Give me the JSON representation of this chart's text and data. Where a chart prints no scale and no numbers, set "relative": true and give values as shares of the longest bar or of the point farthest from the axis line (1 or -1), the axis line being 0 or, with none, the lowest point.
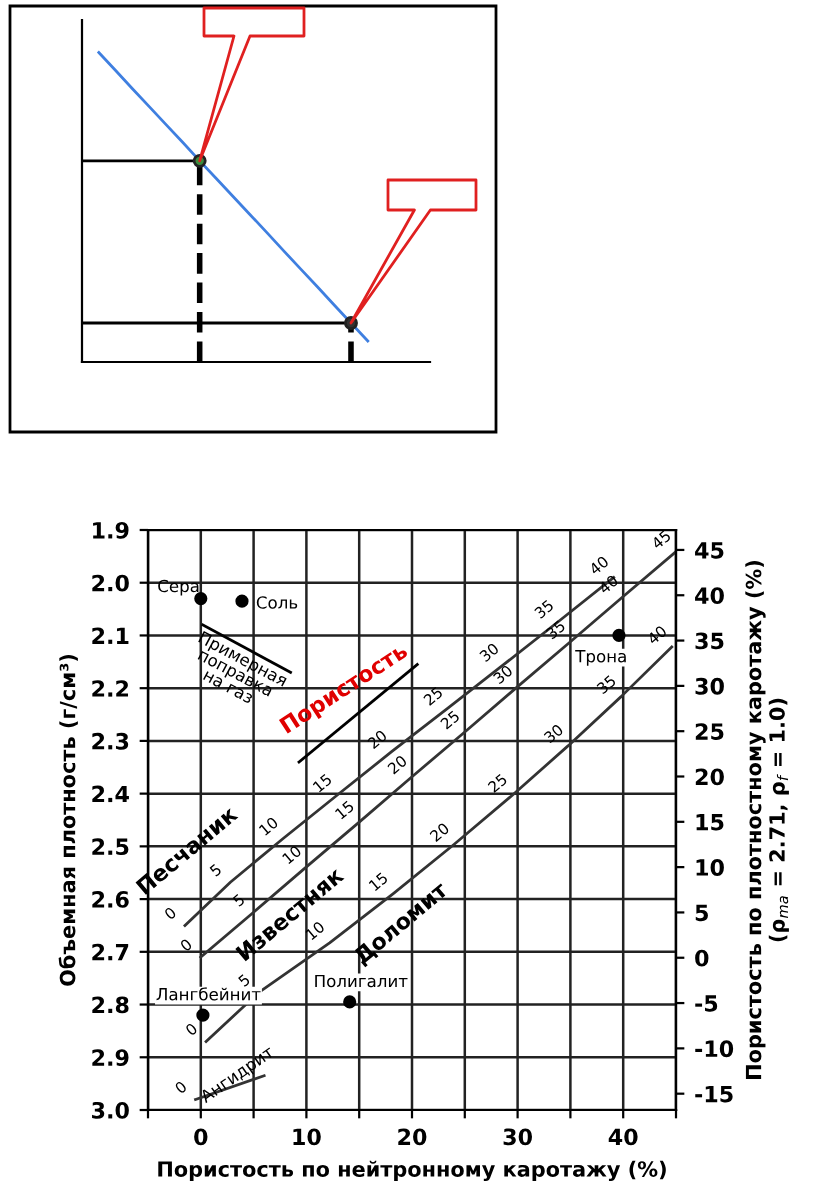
{
  "chart_data": [
    {
      "type": "line",
      "relative": true,
      "categories": [
        null,
        null,
        null,
        null,
        null,
        null,
        null,
        null,
        null,
        null,
        null,
        null,
        null,
        null,
        null,
        null,
        null,
        null
      ],
      "series": [
        {
          "color": "#3f7fe0",
          "values": [
            null,
            1.0,
            0.942,
            0.883,
            0.825,
            0.767,
            0.709,
            0.65,
            0.592,
            0.534,
            0.476,
            0.418,
            0.359,
            0.301,
            0.243,
            0.184,
            0.126,
            0.068
          ]
        },
        {
          "color": "#000000",
          "values": [
            0.65,
            0.65,
            0.65,
            0.65,
            0.65,
            0.65,
            0.65,
            0.65,
            null,
            null,
            null,
            null,
            null,
            null,
            null,
            null,
            null,
            null
          ]
        },
        {
          "color": "#000000",
          "values": [
            0.126,
            0.126,
            0.126,
            0.126,
            0.126,
            0.126,
            0.126,
            0.126,
            0.126,
            0.126,
            0.126,
            0.126,
            0.126,
            0.126,
            0.126,
            0.126,
            0.126,
            null
          ]
        }
      ]
    },
    {
      "type": "line",
      "grid": true,
      "xlabel": "Пористость по нейтронному каротажу (%)",
      "ylabel": "Объемная плотность (г/см³)",
      "y2label": "Пористость по плотностному каротажу (%)\n(ρ$_{ma}$ = 2.71, ρ$_{f}$ = 1.0)",
      "xlim": [
        -5,
        45
      ],
      "xticks": [
        {
          "value": -5,
          "label": null
        },
        0,
        {
          "value": 5,
          "label": null
        },
        10,
        {
          "value": 15,
          "label": null
        },
        20,
        {
          "value": 25,
          "label": null
        },
        30,
        {
          "value": 35,
          "label": null
        },
        40,
        {
          "value": 45,
          "label": null
        }
      ],
      "ylim": [
        3.0,
        1.9
      ],
      "yticks": [
        1.9,
        {
          "value": 2.0,
          "label": "2.0"
        },
        2.1,
        2.2,
        2.3,
        2.4,
        2.5,
        2.6,
        2.7,
        2.8,
        2.9,
        {
          "value": 3.0,
          "label": "3.0"
        }
      ],
      "y2lim": [
        -16.8,
        47.2
      ],
      "y2ticks": [
        -15,
        -10,
        -5,
        0,
        5,
        10,
        15,
        20,
        25,
        30,
        35,
        40,
        45
      ],
      "series": [
        {
          "color": "#333333",
          "x": [
            -1.5,
            2.8,
            7.8,
            12.9,
            18.1,
            23.4,
            28.7,
            33.9,
            39.1
          ],
          "values": [
            2.65,
            2.568,
            2.485,
            2.403,
            2.32,
            2.238,
            2.155,
            2.073,
            1.99
          ]
        },
        {
          "color": "#333333",
          "x": [
            0,
            5,
            10,
            15,
            20,
            25,
            30,
            35,
            40,
            45
          ],
          "values": [
            2.71,
            2.625,
            2.539,
            2.454,
            2.368,
            2.283,
            2.197,
            2.112,
            2.026,
            1.941
          ]
        },
        {
          "color": "#333333",
          "x": [
            0.5,
            5.5,
            12.2,
            18.2,
            24,
            29.5,
            34.8,
            39.8,
            44.6
          ],
          "values": [
            2.87,
            2.777,
            2.683,
            2.59,
            2.496,
            2.403,
            2.309,
            2.216,
            2.122
          ]
        },
        {
          "color": "#333333",
          "x": [
            -0.5,
            6
          ],
          "values": [
            2.98,
            2.935
          ]
        },
        {
          "color": "#000000",
          "x": [
            0.2,
            8.5
          ],
          "values": [
            2.08,
            2.17
          ]
        },
        {
          "color": "#000000",
          "x": [
            9.3,
            20.5
          ],
          "values": [
            2.34,
            2.155
          ]
        },
        {
          "type": "scatter",
          "marker": "circle",
          "color": "#000000",
          "x": [
            0,
            3.9,
            39.6,
            0.2,
            14.1
          ],
          "values": [
            2.03,
            2.035,
            2.1,
            2.82,
            2.795
          ]
        }
      ],
      "annotations": [
        {
          "text": "Сера",
          "x": 0,
          "y": 2.03
        },
        {
          "text": "Соль",
          "x": 3.9,
          "y": 2.035
        },
        {
          "text": "Трона",
          "x": 39.6,
          "y": 2.1
        },
        {
          "text": "Лангбейнит",
          "x": 0.2,
          "y": 2.82
        },
        {
          "text": "Полигалит",
          "x": 14.1,
          "y": 2.795
        },
        {
          "text": "Примерная\nпоправка\nна газ",
          "x": 4.3,
          "y": 2.125
        },
        {
          "text": "Пористость",
          "x": 14.9,
          "y": 2.25
        },
        "Песчаник",
        "Известняк",
        "Доломит",
        "Ангидрит",
        {
          "text": "0",
          "x": -1.5,
          "y": 2.65
        },
        {
          "text": "5",
          "x": 2.8,
          "y": 2.568
        },
        {
          "text": "10",
          "x": 7.8,
          "y": 2.485
        },
        {
          "text": "15",
          "x": 12.9,
          "y": 2.403
        },
        {
          "text": "20",
          "x": 18.1,
          "y": 2.32
        },
        {
          "text": "25",
          "x": 23.4,
          "y": 2.238
        },
        {
          "text": "30",
          "x": 28.7,
          "y": 2.155
        },
        {
          "text": "35",
          "x": 33.9,
          "y": 2.073
        },
        {
          "text": "40",
          "x": 39.1,
          "y": 1.99
        },
        {
          "text": "0",
          "x": 0,
          "y": 2.71
        },
        {
          "text": "5",
          "x": 5,
          "y": 2.625
        },
        {
          "text": "10",
          "x": 10,
          "y": 2.539
        },
        {
          "text": "15",
          "x": 15,
          "y": 2.454
        },
        {
          "text": "20",
          "x": 20,
          "y": 2.368
        },
        {
          "text": "25",
          "x": 25,
          "y": 2.283
        },
        {
          "text": "30",
          "x": 30,
          "y": 2.197
        },
        {
          "text": "35",
          "x": 35,
          "y": 2.112
        },
        {
          "text": "40",
          "x": 40,
          "y": 2.026
        },
        {
          "text": "45",
          "x": 45,
          "y": 1.941
        },
        {
          "text": "0",
          "x": 0.5,
          "y": 2.87
        },
        {
          "text": "5",
          "x": 5.5,
          "y": 2.777
        },
        {
          "text": "10",
          "x": 12.2,
          "y": 2.683
        },
        {
          "text": "15",
          "x": 18.2,
          "y": 2.59
        },
        {
          "text": "20",
          "x": 24,
          "y": 2.496
        },
        {
          "text": "25",
          "x": 29.5,
          "y": 2.403
        },
        {
          "text": "30",
          "x": 34.8,
          "y": 2.309
        },
        {
          "text": "35",
          "x": 39.8,
          "y": 2.216
        },
        {
          "text": "40",
          "x": 44.6,
          "y": 2.122
        },
        {
          "text": "0",
          "x": -0.5,
          "y": 2.98
        }
      ]
    }
  ]
}
